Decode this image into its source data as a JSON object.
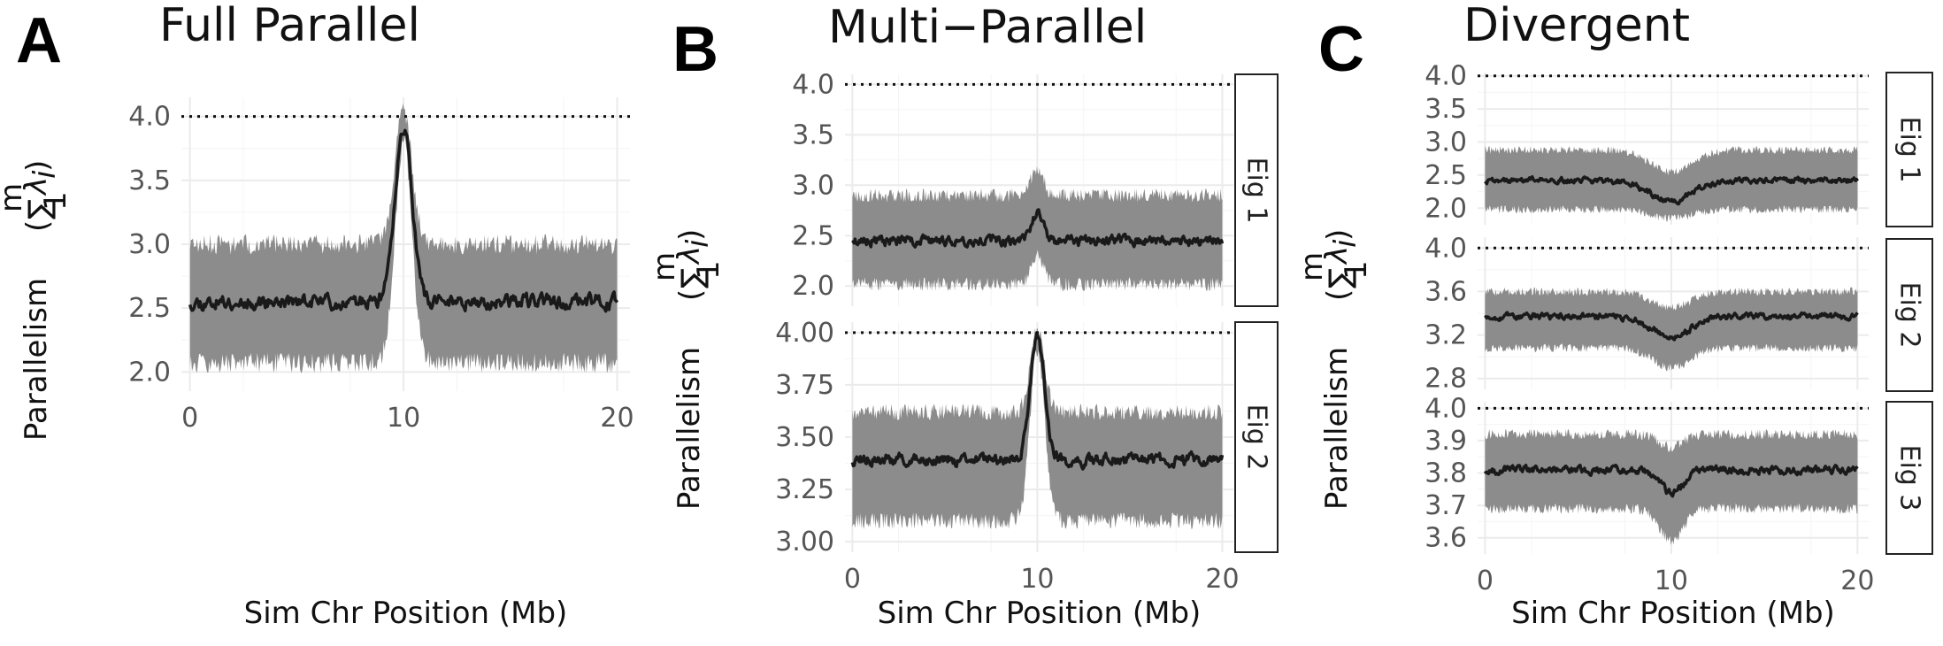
{
  "chart_data": [
    {
      "type": "area",
      "panel_letter": "A",
      "title": "Full Parallel",
      "xlabel": "Sim Chr Position (Mb)",
      "ylabel": "Parallelism",
      "ylabel_math": {
        "sum_upper": "m",
        "sum_lower": "1",
        "lambda": "λ",
        "subscript": "i"
      },
      "xlim": [
        -0.4,
        20.6
      ],
      "xticks": [
        "0",
        "10",
        "20"
      ],
      "facets": [
        {
          "strip": "",
          "ylim": [
            1.85,
            4.15
          ],
          "yticks": [
            {
              "v": 2.0,
              "label": "2.0"
            },
            {
              "v": 2.5,
              "label": "2.5"
            },
            {
              "v": 3.0,
              "label": "3.0"
            },
            {
              "v": 3.5,
              "label": "3.5"
            },
            {
              "v": 4.0,
              "label": "4.0"
            }
          ],
          "ref_line": 4.0,
          "baseline": 2.55,
          "baseline_upper": 3.0,
          "baseline_lower": 2.07,
          "peak_mean": 3.93,
          "peak_upper": 4.05,
          "peak_lower": 3.8,
          "peak_center": 10,
          "peak_width": 0.55,
          "noise": 0.04,
          "seed": 11
        }
      ]
    },
    {
      "type": "area",
      "panel_letter": "B",
      "title": "Multi−Parallel",
      "xlabel": "Sim Chr Position (Mb)",
      "ylabel": "Parallelism",
      "ylabel_math": {
        "sum_upper": "m",
        "sum_lower": "1",
        "lambda": "λ",
        "subscript": "i"
      },
      "xlim": [
        -0.4,
        20.6
      ],
      "xticks": [
        "0",
        "10",
        "20"
      ],
      "facets": [
        {
          "strip": "Eig 1",
          "ylim": [
            1.8,
            4.1
          ],
          "yticks": [
            {
              "v": 2.0,
              "label": "2.0"
            },
            {
              "v": 2.5,
              "label": "2.5"
            },
            {
              "v": 3.0,
              "label": "3.0"
            },
            {
              "v": 3.5,
              "label": "3.5"
            },
            {
              "v": 4.0,
              "label": "4.0"
            }
          ],
          "ref_line": 4.0,
          "baseline": 2.45,
          "baseline_upper": 2.9,
          "baseline_lower": 2.02,
          "peak_mean": 2.72,
          "peak_upper": 3.18,
          "peak_lower": 2.3,
          "peak_center": 10,
          "peak_width": 0.45,
          "noise": 0.035,
          "seed": 23
        },
        {
          "strip": "Eig 2",
          "ylim": [
            2.95,
            4.05
          ],
          "yticks": [
            {
              "v": 3.0,
              "label": "3.00"
            },
            {
              "v": 3.25,
              "label": "3.25"
            },
            {
              "v": 3.5,
              "label": "3.50"
            },
            {
              "v": 3.75,
              "label": "3.75"
            },
            {
              "v": 4.0,
              "label": "4.00"
            }
          ],
          "ref_line": 4.0,
          "baseline": 3.39,
          "baseline_upper": 3.62,
          "baseline_lower": 3.1,
          "peak_mean": 3.97,
          "peak_upper": 4.0,
          "peak_lower": 3.92,
          "peak_center": 10,
          "peak_width": 0.55,
          "noise": 0.02,
          "seed": 37
        }
      ]
    },
    {
      "type": "area",
      "panel_letter": "C",
      "title": "Divergent",
      "xlabel": "Sim Chr Position (Mb)",
      "ylabel": "Parallelism",
      "ylabel_math": {
        "sum_upper": "m",
        "sum_lower": "1",
        "lambda": "λ",
        "subscript": "i"
      },
      "xlim": [
        -0.4,
        20.6
      ],
      "xticks": [
        "0",
        "10",
        "20"
      ],
      "facets": [
        {
          "strip": "Eig 1",
          "ylim": [
            1.75,
            4.05
          ],
          "yticks": [
            {
              "v": 2.0,
              "label": "2.0"
            },
            {
              "v": 2.5,
              "label": "2.5"
            },
            {
              "v": 3.0,
              "label": "3.0"
            },
            {
              "v": 3.5,
              "label": "3.5"
            },
            {
              "v": 4.0,
              "label": "4.0"
            }
          ],
          "ref_line": 4.0,
          "baseline": 2.42,
          "baseline_upper": 2.88,
          "baseline_lower": 1.98,
          "peak_mean": 2.1,
          "peak_upper": 2.55,
          "peak_lower": 1.85,
          "peak_center": 10,
          "peak_width": 1.6,
          "noise": 0.03,
          "seed": 41
        },
        {
          "strip": "Eig 2",
          "ylim": [
            2.7,
            4.1
          ],
          "yticks": [
            {
              "v": 2.8,
              "label": "2.8"
            },
            {
              "v": 3.2,
              "label": "3.2"
            },
            {
              "v": 3.6,
              "label": "3.6"
            },
            {
              "v": 4.0,
              "label": "4.0"
            }
          ],
          "ref_line": 4.0,
          "baseline": 3.37,
          "baseline_upper": 3.6,
          "baseline_lower": 3.08,
          "peak_mean": 3.18,
          "peak_upper": 3.45,
          "peak_lower": 2.9,
          "peak_center": 10,
          "peak_width": 1.4,
          "noise": 0.02,
          "seed": 53
        },
        {
          "strip": "Eig 3",
          "ylim": [
            3.55,
            4.02
          ],
          "yticks": [
            {
              "v": 3.6,
              "label": "3.6"
            },
            {
              "v": 3.7,
              "label": "3.7"
            },
            {
              "v": 3.8,
              "label": "3.8"
            },
            {
              "v": 3.9,
              "label": "3.9"
            },
            {
              "v": 4.0,
              "label": "4.0"
            }
          ],
          "ref_line": 4.0,
          "baseline": 3.81,
          "baseline_upper": 3.92,
          "baseline_lower": 3.69,
          "peak_mean": 3.74,
          "peak_upper": 3.88,
          "peak_lower": 3.59,
          "peak_center": 10,
          "peak_width": 0.9,
          "noise": 0.008,
          "seed": 67
        }
      ]
    }
  ]
}
